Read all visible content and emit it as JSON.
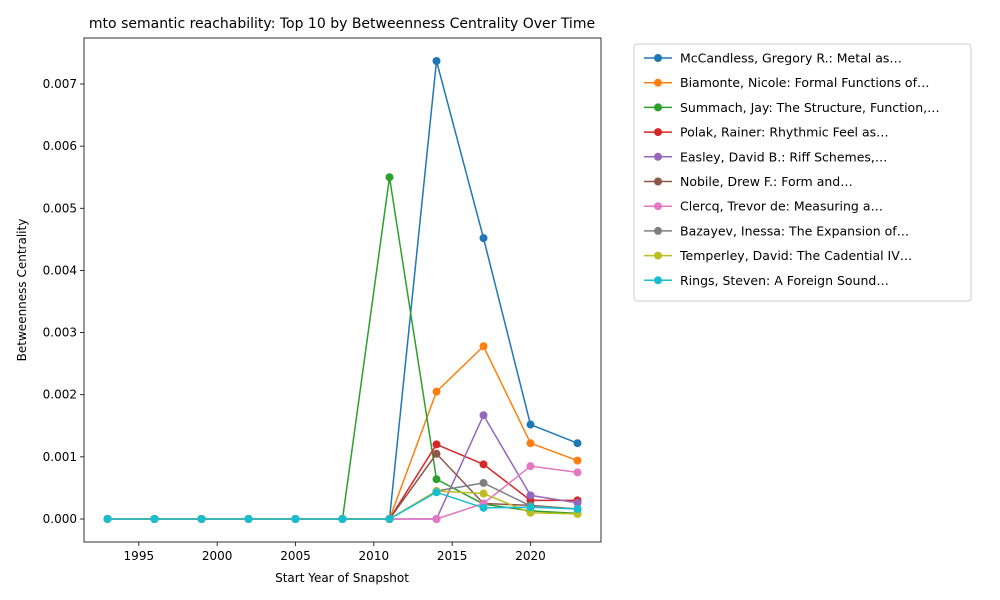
{
  "chart_data": {
    "type": "line",
    "title": "mto semantic reachability: Top 10 by Betweenness Centrality Over Time",
    "xlabel": "Start Year of Snapshot",
    "ylabel": "Betweenness Centrality",
    "xlim": [
      1991.5,
      2024.5
    ],
    "ylim": [
      -0.00037,
      0.00774
    ],
    "xticks": [
      1995,
      2000,
      2005,
      2010,
      2015,
      2020
    ],
    "xtick_labels": [
      "1995",
      "2000",
      "2005",
      "2010",
      "2015",
      "2020"
    ],
    "yticks": [
      0,
      0.001,
      0.002,
      0.003,
      0.004,
      0.005,
      0.006,
      0.007
    ],
    "ytick_labels": [
      "0.000",
      "0.001",
      "0.002",
      "0.003",
      "0.004",
      "0.005",
      "0.006",
      "0.007"
    ],
    "grid": false,
    "legend_position": "outside-right",
    "x": [
      1993,
      1996,
      1999,
      2002,
      2005,
      2008,
      2011,
      2014,
      2017,
      2020,
      2023
    ],
    "series": [
      {
        "name": "McCandless, Gregory R.: Metal as…",
        "color": "#1f77b4",
        "values": [
          0,
          0,
          0,
          0,
          0,
          0,
          0,
          0.00737,
          0.00452,
          0.00152,
          0.00122
        ]
      },
      {
        "name": "Biamonte, Nicole: Formal Functions of…",
        "color": "#ff7f0e",
        "values": [
          0,
          0,
          0,
          0,
          0,
          0,
          0,
          0.00205,
          0.00278,
          0.00122,
          0.00094
        ]
      },
      {
        "name": "Summach, Jay: The Structure, Function,…",
        "color": "#2ca02c",
        "values": [
          0,
          0,
          0,
          0,
          0,
          0,
          0.0055,
          0.00064,
          0.00024,
          0.00013,
          9e-05
        ]
      },
      {
        "name": "Polak, Rainer: Rhythmic Feel as…",
        "color": "#d62728",
        "values": [
          0,
          0,
          0,
          0,
          0,
          0,
          0,
          0.0012,
          0.00088,
          0.0003,
          0.0003
        ]
      },
      {
        "name": "Easley, David B.: Riff Schemes,…",
        "color": "#9467bd",
        "values": [
          0,
          0,
          0,
          0,
          0,
          0,
          0,
          0,
          0.00167,
          0.00038,
          0.00026
        ]
      },
      {
        "name": "Nobile, Drew F.: Form and…",
        "color": "#8c564b",
        "values": [
          0,
          0,
          0,
          0,
          0,
          0,
          0,
          0.00105,
          0.00025,
          0.00022,
          0.00016
        ]
      },
      {
        "name": "Clercq, Trevor de: Measuring a…",
        "color": "#e377c2",
        "values": [
          0,
          0,
          0,
          0,
          0,
          0,
          0,
          0,
          0.00025,
          0.00085,
          0.00075
        ]
      },
      {
        "name": "Bazayev, Inessa: The Expansion of…",
        "color": "#7f7f7f",
        "values": [
          0,
          0,
          0,
          0,
          0,
          0,
          0,
          0.00045,
          0.00058,
          0.00021,
          0.00016
        ]
      },
      {
        "name": "Temperley, David: The Cadential IV…",
        "color": "#bcbd22",
        "values": [
          0,
          0,
          0,
          0,
          0,
          0,
          0,
          0.00045,
          0.00041,
          0.0001,
          8e-05
        ]
      },
      {
        "name": "Rings, Steven: A Foreign Sound…",
        "color": "#17becf",
        "values": [
          0,
          0,
          0,
          0,
          0,
          0,
          0,
          0.00043,
          0.00018,
          0.00019,
          0.00016
        ]
      }
    ]
  }
}
